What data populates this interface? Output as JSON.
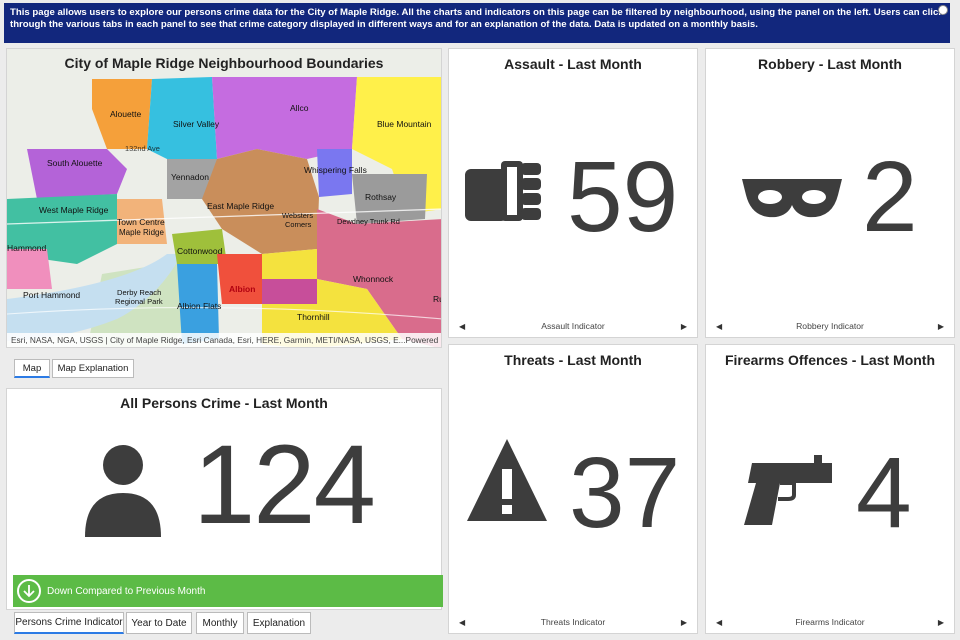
{
  "banner": {
    "text": "This page allows users to explore our persons crime data for the City of Maple Ridge. All the charts and indicators on this page can be filtered by neighbourhood, using the panel on the left. Users can click through the various tabs in each panel to see that crime category displayed in different ways and for an explanation of the data. Data is updated on a monthly basis."
  },
  "map": {
    "title": "City of Maple Ridge Neighbourhood Boundaries",
    "attribution": "Esri, NASA, NGA, USGS | City of Maple Ridge, Esri Canada, Esri, HERE, Garmin, METI/NASA, USGS, E...",
    "powered_by": "Powered by Esri",
    "neighbourhoods": {
      "alouette": "Alouette",
      "silver_valley": "Silver Valley",
      "allco": "Allco",
      "blue_mountain": "Blue Mountain",
      "south_alouette": "South Alouette",
      "whispering_falls": "Whispering Falls",
      "yennadon": "Yennadon",
      "rothsay": "Rothsay",
      "west_maple_ridge": "West Maple Ridge",
      "east_maple_ridge": "East Maple Ridge",
      "town_centre": "Town Centre",
      "hammond": "Hammond",
      "cottonwood": "Cottonwood",
      "whonnock": "Whonnock",
      "port_hammond": "Port Hammond",
      "albion": "Albion",
      "albion_flats": "Albion Flats",
      "thornhill": "Thornhill",
      "ru": "Ru"
    },
    "base_labels": {
      "derby_reach": "Derby Reach",
      "regional_park": "Regional Park",
      "maple_ridge": "Maple Ridge",
      "websters": "Websters",
      "corners": "Corners",
      "dewdney_trunk_rd": "Dewdney Trunk Rd",
      "ave_132": "132nd Ave"
    },
    "tabs": [
      "Map",
      "Map Explanation"
    ]
  },
  "persons": {
    "title": "All Persons Crime - Last Month",
    "value": "124",
    "trend_text": "Down Compared to Previous Month",
    "tabs": [
      "Persons Crime Indicator",
      "Year to Date",
      "Monthly",
      "Explanation"
    ]
  },
  "cards": {
    "assault": {
      "title": "Assault - Last Month",
      "value": "59",
      "footer": "Assault Indicator",
      "icon": "fist-icon"
    },
    "robbery": {
      "title": "Robbery - Last Month",
      "value": "2",
      "footer": "Robbery Indicator",
      "icon": "mask-icon"
    },
    "threats": {
      "title": "Threats - Last Month",
      "value": "37",
      "footer": "Threats Indicator",
      "icon": "warning-icon"
    },
    "firearms": {
      "title": "Firearms Offences - Last Month",
      "value": "4",
      "footer": "Firearms Indicator",
      "icon": "pistol-icon"
    }
  },
  "colors": {
    "banner": "#12277d",
    "trend_green": "#5cbb46",
    "value_grey": "#3d3d3d"
  }
}
